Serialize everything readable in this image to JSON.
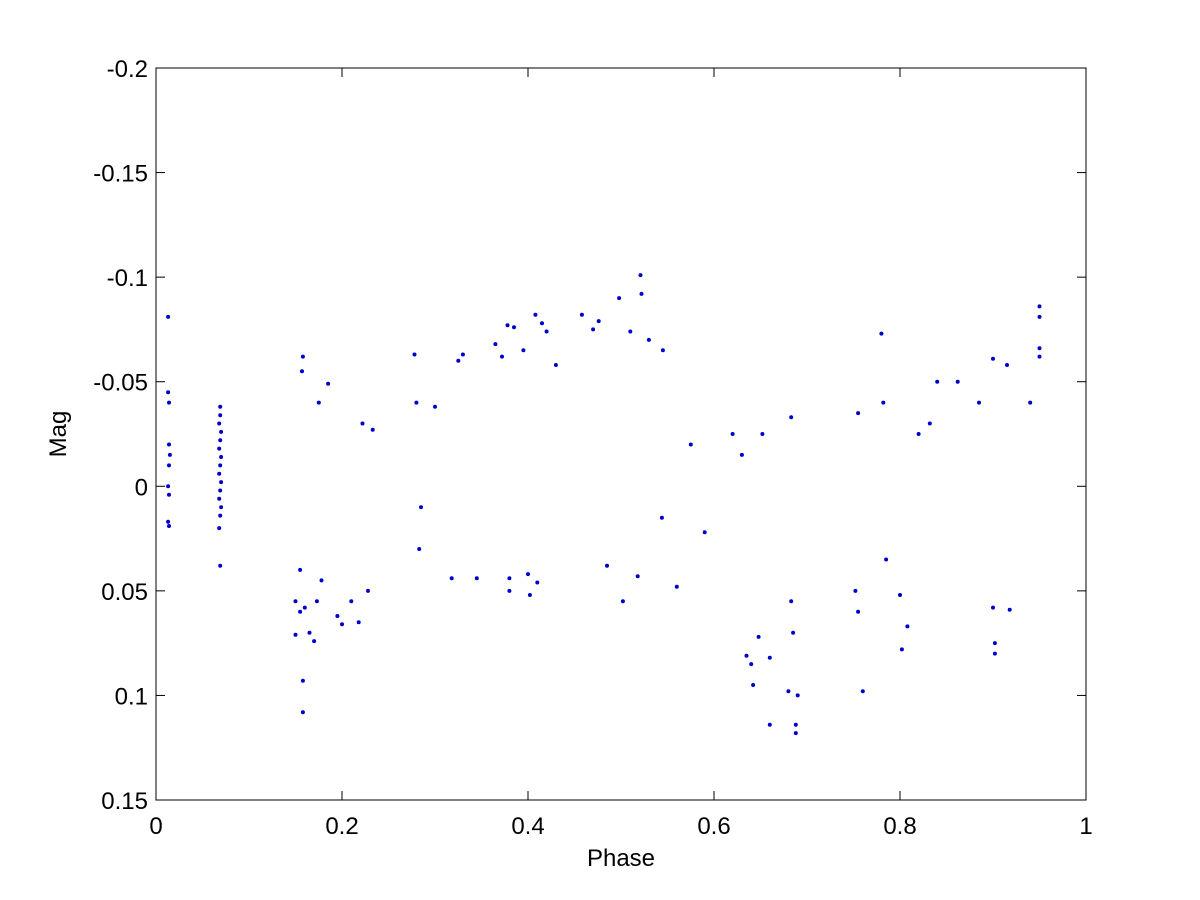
{
  "chart_data": {
    "type": "scatter",
    "title": "",
    "xlabel": "Phase",
    "ylabel": "Mag",
    "xlim": [
      0,
      1
    ],
    "ylim": [
      -0.2,
      0.15
    ],
    "y_inverted": true,
    "grid": false,
    "legend": "none",
    "marker_color": "#0000cc",
    "x_ticks": [
      0,
      0.2,
      0.4,
      0.6,
      0.8,
      1
    ],
    "x_tick_labels": [
      "0",
      "0.2",
      "0.4",
      "0.6",
      "0.8",
      "1"
    ],
    "y_ticks": [
      -0.2,
      -0.15,
      -0.1,
      -0.05,
      0,
      0.05,
      0.1,
      0.15
    ],
    "y_tick_labels": [
      "-0.2",
      "-0.15",
      "-0.1",
      "-0.05",
      "0",
      "0.05",
      "0.1",
      "0.15"
    ],
    "points": [
      [
        0.013,
        -0.081
      ],
      [
        0.013,
        -0.045
      ],
      [
        0.014,
        -0.04
      ],
      [
        0.014,
        -0.02
      ],
      [
        0.015,
        -0.015
      ],
      [
        0.014,
        -0.01
      ],
      [
        0.013,
        0.0
      ],
      [
        0.014,
        0.004
      ],
      [
        0.013,
        0.017
      ],
      [
        0.014,
        0.019
      ],
      [
        0.069,
        -0.038
      ],
      [
        0.069,
        -0.034
      ],
      [
        0.068,
        -0.03
      ],
      [
        0.07,
        -0.026
      ],
      [
        0.069,
        -0.022
      ],
      [
        0.068,
        -0.018
      ],
      [
        0.07,
        -0.014
      ],
      [
        0.069,
        -0.01
      ],
      [
        0.068,
        -0.006
      ],
      [
        0.07,
        -0.002
      ],
      [
        0.069,
        0.002
      ],
      [
        0.068,
        0.006
      ],
      [
        0.07,
        0.01
      ],
      [
        0.069,
        0.014
      ],
      [
        0.068,
        0.02
      ],
      [
        0.069,
        0.038
      ],
      [
        0.15,
        0.055
      ],
      [
        0.15,
        0.071
      ],
      [
        0.155,
        0.04
      ],
      [
        0.155,
        0.06
      ],
      [
        0.158,
        0.093
      ],
      [
        0.158,
        0.108
      ],
      [
        0.158,
        -0.062
      ],
      [
        0.157,
        -0.055
      ],
      [
        0.16,
        0.058
      ],
      [
        0.165,
        0.07
      ],
      [
        0.17,
        0.074
      ],
      [
        0.175,
        -0.04
      ],
      [
        0.173,
        0.055
      ],
      [
        0.178,
        0.045
      ],
      [
        0.185,
        -0.049
      ],
      [
        0.195,
        0.062
      ],
      [
        0.2,
        0.066
      ],
      [
        0.21,
        0.055
      ],
      [
        0.218,
        0.065
      ],
      [
        0.222,
        -0.03
      ],
      [
        0.228,
        0.05
      ],
      [
        0.233,
        -0.027
      ],
      [
        0.278,
        -0.063
      ],
      [
        0.28,
        -0.04
      ],
      [
        0.285,
        0.01
      ],
      [
        0.283,
        0.03
      ],
      [
        0.3,
        -0.038
      ],
      [
        0.318,
        0.044
      ],
      [
        0.325,
        -0.06
      ],
      [
        0.33,
        -0.063
      ],
      [
        0.345,
        0.044
      ],
      [
        0.365,
        -0.068
      ],
      [
        0.372,
        -0.062
      ],
      [
        0.378,
        -0.077
      ],
      [
        0.38,
        0.044
      ],
      [
        0.38,
        0.05
      ],
      [
        0.385,
        -0.076
      ],
      [
        0.395,
        -0.065
      ],
      [
        0.4,
        0.042
      ],
      [
        0.402,
        0.052
      ],
      [
        0.408,
        -0.082
      ],
      [
        0.41,
        0.046
      ],
      [
        0.415,
        -0.078
      ],
      [
        0.42,
        -0.074
      ],
      [
        0.43,
        -0.058
      ],
      [
        0.458,
        -0.082
      ],
      [
        0.47,
        -0.075
      ],
      [
        0.476,
        -0.079
      ],
      [
        0.485,
        0.038
      ],
      [
        0.498,
        -0.09
      ],
      [
        0.502,
        0.055
      ],
      [
        0.51,
        -0.074
      ],
      [
        0.518,
        0.043
      ],
      [
        0.521,
        -0.101
      ],
      [
        0.522,
        -0.092
      ],
      [
        0.53,
        -0.07
      ],
      [
        0.545,
        -0.065
      ],
      [
        0.544,
        0.015
      ],
      [
        0.56,
        0.048
      ],
      [
        0.575,
        -0.02
      ],
      [
        0.59,
        0.022
      ],
      [
        0.62,
        -0.025
      ],
      [
        0.63,
        -0.015
      ],
      [
        0.635,
        0.081
      ],
      [
        0.64,
        0.085
      ],
      [
        0.642,
        0.095
      ],
      [
        0.648,
        0.072
      ],
      [
        0.652,
        -0.025
      ],
      [
        0.66,
        0.114
      ],
      [
        0.66,
        0.082
      ],
      [
        0.68,
        0.098
      ],
      [
        0.683,
        0.055
      ],
      [
        0.685,
        0.07
      ],
      [
        0.688,
        0.118
      ],
      [
        0.688,
        0.114
      ],
      [
        0.683,
        -0.033
      ],
      [
        0.69,
        0.1
      ],
      [
        0.752,
        0.05
      ],
      [
        0.755,
        0.06
      ],
      [
        0.76,
        0.098
      ],
      [
        0.755,
        -0.035
      ],
      [
        0.78,
        -0.073
      ],
      [
        0.782,
        -0.04
      ],
      [
        0.785,
        0.035
      ],
      [
        0.8,
        0.052
      ],
      [
        0.802,
        0.078
      ],
      [
        0.808,
        0.067
      ],
      [
        0.82,
        -0.025
      ],
      [
        0.832,
        -0.03
      ],
      [
        0.84,
        -0.05
      ],
      [
        0.862,
        -0.05
      ],
      [
        0.885,
        -0.04
      ],
      [
        0.9,
        -0.061
      ],
      [
        0.9,
        0.058
      ],
      [
        0.902,
        0.08
      ],
      [
        0.902,
        0.075
      ],
      [
        0.915,
        -0.058
      ],
      [
        0.918,
        0.059
      ],
      [
        0.94,
        -0.04
      ],
      [
        0.95,
        -0.086
      ],
      [
        0.95,
        -0.081
      ],
      [
        0.95,
        -0.066
      ],
      [
        0.95,
        -0.062
      ]
    ]
  }
}
